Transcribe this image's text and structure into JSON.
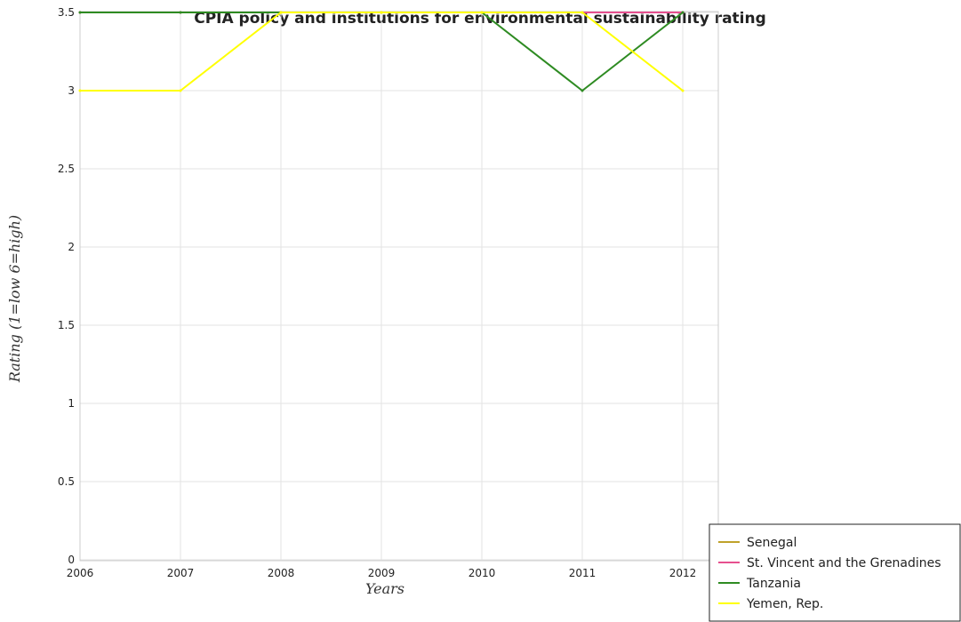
{
  "chart_data": {
    "type": "line",
    "title": "CPIA policy and institutions for environmental sustainability rating",
    "xlabel": "Years",
    "ylabel": "Rating (1=low 6=high)",
    "x": [
      "2006",
      "2007",
      "2008",
      "2009",
      "2010",
      "2011",
      "2012"
    ],
    "ylim": [
      0,
      3.5
    ],
    "yticks": [
      "0",
      "0.5",
      "1",
      "1.5",
      "2",
      "2.5",
      "3",
      "3.5"
    ],
    "grid": true,
    "legend_position": "bottom-right",
    "series": [
      {
        "name": "Senegal",
        "color": "#bfa22a",
        "values": [
          3.5,
          3.5,
          3.5,
          3.5,
          3.5,
          3.5,
          3.5
        ]
      },
      {
        "name": "St. Vincent and the Grenadines",
        "color": "#e6508f",
        "values": [
          3.5,
          3.5,
          3.5,
          3.5,
          3.5,
          3.5,
          3.5
        ]
      },
      {
        "name": "Tanzania",
        "color": "#2e8b22",
        "values": [
          3.5,
          3.5,
          3.5,
          3.5,
          3.5,
          3.0,
          3.5
        ]
      },
      {
        "name": "Yemen, Rep.",
        "color": "#ffff00",
        "values": [
          3.0,
          3.0,
          3.5,
          3.5,
          3.5,
          3.5,
          3.0
        ]
      }
    ]
  }
}
